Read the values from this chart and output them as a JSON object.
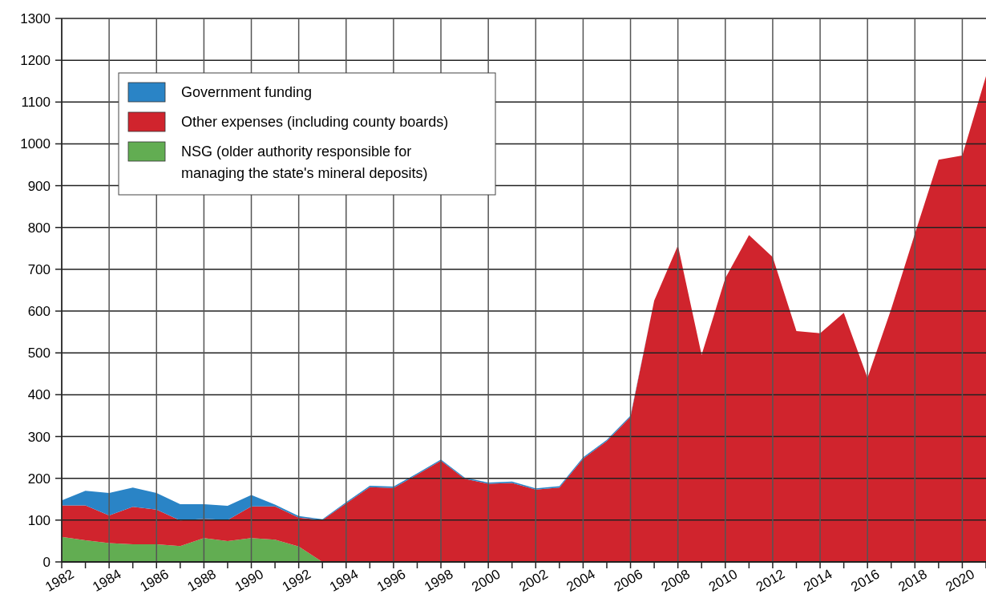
{
  "chart_data": {
    "type": "area",
    "stacked": true,
    "x": [
      1982,
      1983,
      1984,
      1985,
      1986,
      1987,
      1988,
      1989,
      1990,
      1991,
      1992,
      1993,
      1994,
      1995,
      1996,
      1997,
      1998,
      1999,
      2000,
      2001,
      2002,
      2003,
      2004,
      2005,
      2006,
      2007,
      2008,
      2009,
      2010,
      2011,
      2012,
      2013,
      2014,
      2015,
      2016,
      2017,
      2018,
      2019,
      2020,
      2021
    ],
    "series": [
      {
        "name": "NSG (older authority responsible for managing the state's mineral deposits)",
        "color": "#62ad52",
        "values": [
          60,
          52,
          45,
          42,
          42,
          38,
          57,
          50,
          57,
          53,
          37,
          0,
          0,
          0,
          0,
          0,
          0,
          0,
          0,
          0,
          0,
          0,
          0,
          0,
          0,
          0,
          0,
          0,
          0,
          0,
          0,
          0,
          0,
          0,
          0,
          0,
          0,
          0,
          0,
          0
        ]
      },
      {
        "name": "Other expenses (including county boards)",
        "color": "#d0242d",
        "values": [
          75,
          83,
          66,
          90,
          83,
          61,
          46,
          50,
          76,
          80,
          69,
          100,
          140,
          179,
          177,
          209,
          242,
          199,
          187,
          189,
          173,
          178,
          247,
          289,
          347,
          625,
          757,
          495,
          679,
          782,
          729,
          552,
          547,
          596,
          440,
          605,
          785,
          962,
          972,
          1162
        ]
      },
      {
        "name": "Government funding",
        "color": "#2a84c6",
        "values": [
          12,
          35,
          54,
          46,
          40,
          39,
          35,
          34,
          27,
          4,
          4,
          2,
          3,
          3,
          3,
          3,
          3,
          3,
          3,
          3,
          3,
          3,
          3,
          3,
          3,
          0,
          0,
          0,
          0,
          0,
          0,
          0,
          0,
          0,
          0,
          0,
          0,
          0,
          0,
          0
        ]
      }
    ],
    "xlim": [
      1982,
      2021
    ],
    "xticks": [
      1982,
      {
        "value": 1983,
        "label": null
      },
      1984,
      {
        "value": 1985,
        "label": null
      },
      1986,
      {
        "value": 1987,
        "label": null
      },
      1988,
      {
        "value": 1989,
        "label": null
      },
      1990,
      {
        "value": 1991,
        "label": null
      },
      1992,
      {
        "value": 1993,
        "label": null
      },
      1994,
      {
        "value": 1995,
        "label": null
      },
      1996,
      {
        "value": 1997,
        "label": null
      },
      1998,
      {
        "value": 1999,
        "label": null
      },
      2000,
      {
        "value": 2001,
        "label": null
      },
      2002,
      {
        "value": 2003,
        "label": null
      },
      2004,
      {
        "value": 2005,
        "label": null
      },
      2006,
      {
        "value": 2007,
        "label": null
      },
      2008,
      {
        "value": 2009,
        "label": null
      },
      2010,
      {
        "value": 2011,
        "label": null
      },
      2012,
      {
        "value": 2013,
        "label": null
      },
      2014,
      {
        "value": 2015,
        "label": null
      },
      2016,
      {
        "value": 2017,
        "label": null
      },
      2018,
      {
        "value": 2019,
        "label": null
      },
      2020,
      {
        "value": 2021,
        "label": null
      }
    ],
    "ylim": [
      0,
      1300
    ],
    "yticks": [
      0,
      100,
      200,
      300,
      400,
      500,
      600,
      700,
      800,
      900,
      1000,
      1100,
      1200,
      1300
    ],
    "grid": true,
    "legend": "top left"
  }
}
